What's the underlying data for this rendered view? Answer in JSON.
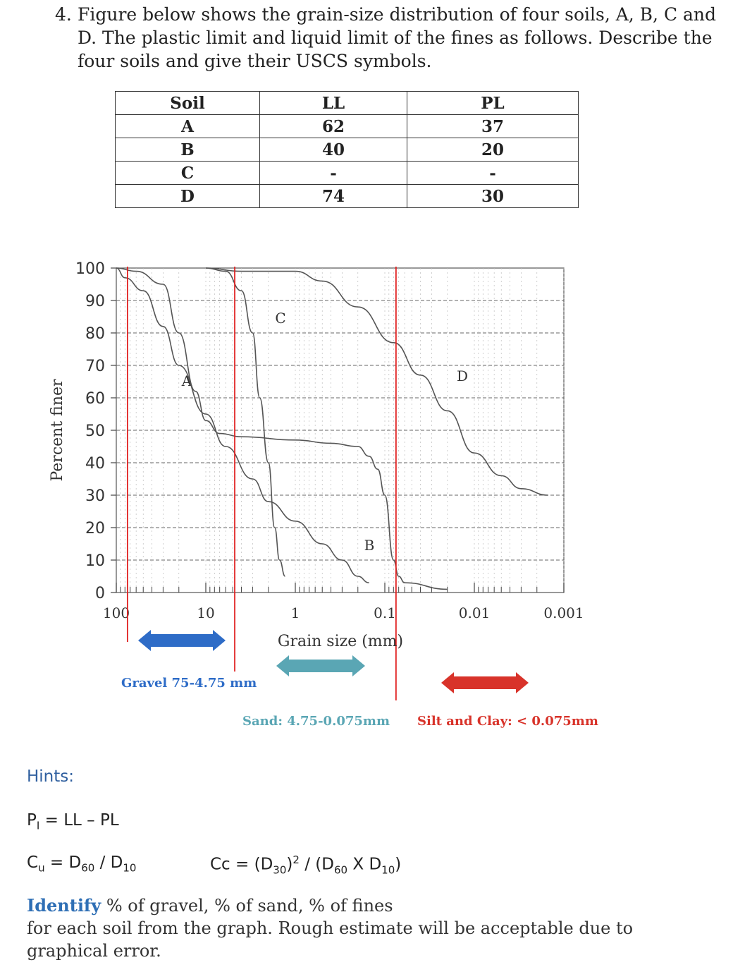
{
  "question": {
    "number": "4.",
    "text": "Figure below shows the grain-size distribution of four soils, A, B, C and D. The plastic limit and liquid limit of the fines as follows. Describe the four soils and give their USCS symbols."
  },
  "limits_table": {
    "headers": [
      "Soil",
      "LL",
      "PL"
    ],
    "rows": [
      [
        "A",
        "62",
        "37"
      ],
      [
        "B",
        "40",
        "20"
      ],
      [
        "C",
        "-",
        "-"
      ],
      [
        "D",
        "74",
        "30"
      ]
    ]
  },
  "chart_data": {
    "type": "line",
    "xlabel": "Grain size (mm)",
    "ylabel": "Percent finer",
    "x_scale": "log",
    "x_reversed": true,
    "xlim": [
      100,
      0.001
    ],
    "ylim": [
      0,
      100
    ],
    "x_tick_labels": [
      "100",
      "10",
      "1",
      "0.1",
      "0.01",
      "0.001"
    ],
    "y_tick_labels": [
      "0",
      "10",
      "20",
      "30",
      "40",
      "50",
      "60",
      "70",
      "80",
      "90",
      "100"
    ],
    "series": [
      {
        "name": "A",
        "points": [
          [
            100,
            100
          ],
          [
            60,
            99
          ],
          [
            30,
            95
          ],
          [
            20,
            80
          ],
          [
            13,
            62
          ],
          [
            10,
            53
          ],
          [
            7,
            49
          ],
          [
            4,
            48
          ],
          [
            1,
            47
          ],
          [
            0.4,
            46
          ],
          [
            0.2,
            45
          ],
          [
            0.15,
            42
          ],
          [
            0.12,
            38
          ],
          [
            0.1,
            30
          ],
          [
            0.08,
            10
          ],
          [
            0.07,
            5
          ],
          [
            0.06,
            3
          ],
          [
            0.02,
            1
          ]
        ]
      },
      {
        "name": "B",
        "points": [
          [
            100,
            100
          ],
          [
            80,
            97
          ],
          [
            50,
            93
          ],
          [
            30,
            82
          ],
          [
            20,
            70
          ],
          [
            10,
            55
          ],
          [
            6,
            45
          ],
          [
            3,
            35
          ],
          [
            2,
            28
          ],
          [
            1,
            22
          ],
          [
            0.5,
            15
          ],
          [
            0.3,
            10
          ],
          [
            0.2,
            5
          ],
          [
            0.15,
            3
          ]
        ]
      },
      {
        "name": "C",
        "points": [
          [
            10,
            100
          ],
          [
            6,
            99
          ],
          [
            4,
            93
          ],
          [
            3,
            80
          ],
          [
            2.5,
            60
          ],
          [
            2,
            40
          ],
          [
            1.7,
            20
          ],
          [
            1.5,
            10
          ],
          [
            1.3,
            5
          ]
        ]
      },
      {
        "name": "D",
        "points": [
          [
            10,
            100
          ],
          [
            4,
            99
          ],
          [
            1,
            99
          ],
          [
            0.5,
            96
          ],
          [
            0.2,
            88
          ],
          [
            0.08,
            77
          ],
          [
            0.04,
            67
          ],
          [
            0.02,
            56
          ],
          [
            0.01,
            43
          ],
          [
            0.005,
            36
          ],
          [
            0.003,
            32
          ],
          [
            0.0015,
            30
          ]
        ]
      }
    ],
    "annotations": {
      "gravel": "Gravel 75-4.75 mm",
      "sand": "Sand: 4.75-0.075mm",
      "fines": "Silt and Clay: < 0.075mm"
    },
    "reference_lines_mm": [
      75,
      4.75,
      0.075
    ],
    "colors": {
      "curve": "#555555",
      "reference": "#e02020",
      "gravel": "#2e6cc7",
      "sand": "#5aa6b4",
      "fines": "#d8332a"
    }
  },
  "hints": {
    "label": "Hints:",
    "pi_lhs": "P",
    "pi_sub": "I",
    "pi_rhs": "= LL – PL",
    "cu_lhs": "C",
    "cu_sub": "u",
    "cu_mid": "= D",
    "cu_sub60": "60",
    "cu_div": " / D",
    "cu_sub10": "10",
    "cc_lhs": "Cc = (D",
    "cc_sub30": "30",
    "cc_sup": "2",
    "cc_mid": " / (D",
    "cc_sub60": "60",
    "cc_x": " X D",
    "cc_sub10": "10",
    "cc_end": ")"
  },
  "instruction": {
    "keyword": "Identify",
    "rest": " % of gravel, % of sand, % of fines",
    "line2": "for each soil from the graph. Rough estimate will be acceptable due to graphical error."
  }
}
